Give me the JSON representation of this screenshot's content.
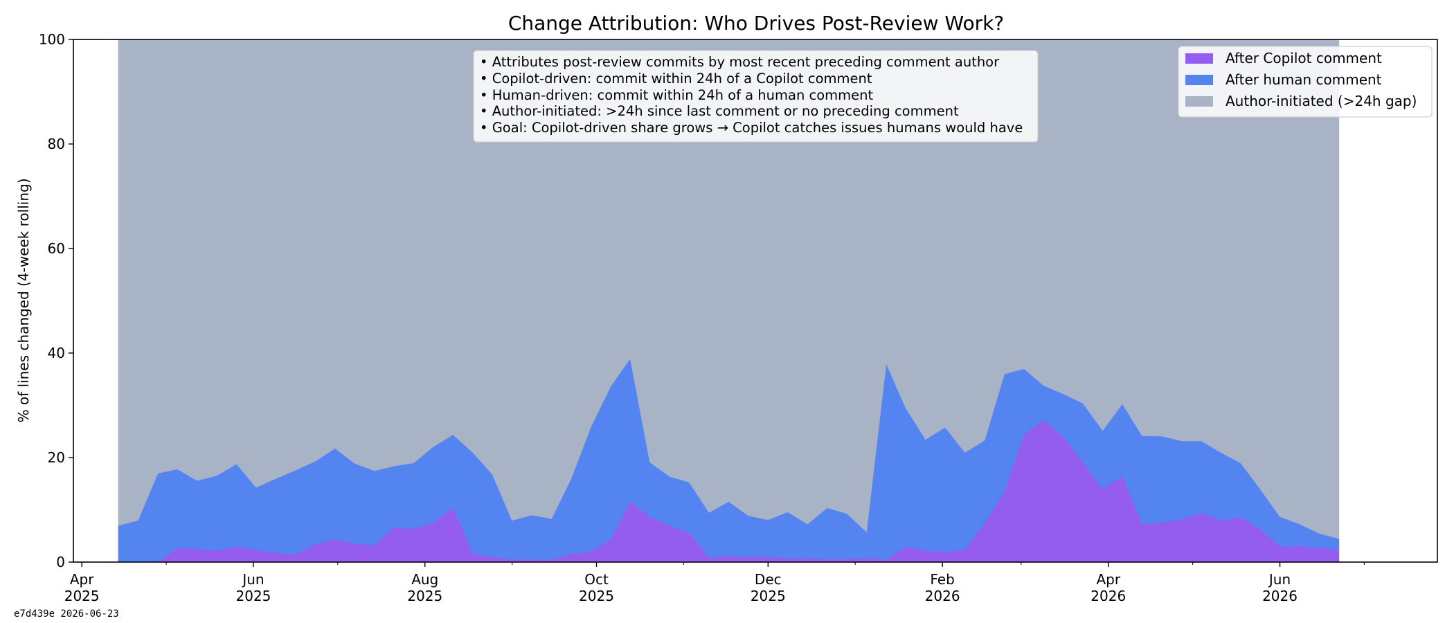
{
  "chart_data": {
    "type": "area",
    "title": "Change Attribution: Who Drives Post-Review Work?",
    "xlabel": "",
    "ylabel": "% of lines changed (4-week rolling)",
    "ylim": [
      0,
      100
    ],
    "xlim": [
      "2025-03-29",
      "2026-07-27"
    ],
    "yticks": [
      0,
      20,
      40,
      60,
      80,
      100
    ],
    "xticks": [
      {
        "date": "2025-04-01",
        "line1": "Apr",
        "line2": "2025"
      },
      {
        "date": "2025-06-01",
        "line1": "Jun",
        "line2": "2025"
      },
      {
        "date": "2025-08-01",
        "line1": "Aug",
        "line2": "2025"
      },
      {
        "date": "2025-10-01",
        "line1": "Oct",
        "line2": "2025"
      },
      {
        "date": "2025-12-01",
        "line1": "Dec",
        "line2": "2025"
      },
      {
        "date": "2026-02-01",
        "line1": "Feb",
        "line2": "2026"
      },
      {
        "date": "2026-04-01",
        "line1": "Apr",
        "line2": "2026"
      },
      {
        "date": "2026-06-01",
        "line1": "Jun",
        "line2": "2026"
      }
    ],
    "minor_ticks": [
      "2025-05-01",
      "2025-07-01",
      "2025-09-01",
      "2025-11-01",
      "2026-01-01",
      "2026-03-01",
      "2026-05-01",
      "2026-07-01"
    ],
    "grid": false,
    "legend_position": "top-right",
    "stacked": true,
    "x": [
      "2025-04-14",
      "2025-04-21",
      "2025-04-28",
      "2025-05-05",
      "2025-05-12",
      "2025-05-19",
      "2025-05-26",
      "2025-06-02",
      "2025-06-09",
      "2025-06-16",
      "2025-06-23",
      "2025-06-30",
      "2025-07-07",
      "2025-07-14",
      "2025-07-21",
      "2025-07-28",
      "2025-08-04",
      "2025-08-11",
      "2025-08-18",
      "2025-08-25",
      "2025-09-01",
      "2025-09-08",
      "2025-09-15",
      "2025-09-22",
      "2025-09-29",
      "2025-10-06",
      "2025-10-13",
      "2025-10-20",
      "2025-10-27",
      "2025-11-03",
      "2025-11-10",
      "2025-11-17",
      "2025-11-24",
      "2025-12-01",
      "2025-12-08",
      "2025-12-15",
      "2025-12-22",
      "2025-12-29",
      "2026-01-05",
      "2026-01-12",
      "2026-01-19",
      "2026-01-26",
      "2026-02-02",
      "2026-02-09",
      "2026-02-16",
      "2026-02-23",
      "2026-03-02",
      "2026-03-09",
      "2026-03-16",
      "2026-03-23",
      "2026-03-30",
      "2026-04-06",
      "2026-04-13",
      "2026-04-20",
      "2026-04-27",
      "2026-05-04",
      "2026-05-11",
      "2026-05-18",
      "2026-05-25",
      "2026-06-01",
      "2026-06-08",
      "2026-06-15",
      "2026-06-22"
    ],
    "series": [
      {
        "name": "After Copilot comment",
        "color": "#955cf0",
        "values": [
          0,
          0,
          0,
          2.7,
          2.6,
          2.2,
          3.0,
          2.3,
          1.8,
          1.5,
          3.5,
          4.4,
          3.6,
          3.2,
          6.7,
          6.4,
          7.5,
          10.5,
          1.7,
          1.0,
          0.6,
          0.5,
          0.5,
          1.6,
          2.0,
          4.4,
          11.7,
          8.6,
          7.0,
          5.6,
          0.9,
          1.2,
          1.0,
          1.0,
          0.8,
          0.7,
          0.6,
          0.6,
          0.8,
          0.5,
          3.0,
          2.2,
          2.0,
          2.4,
          7.5,
          13.5,
          24.5,
          27.2,
          24.0,
          19.0,
          14.0,
          16.5,
          7.2,
          7.6,
          8.2,
          9.4,
          8.0,
          8.6,
          6.3,
          3.0,
          3.1,
          2.7,
          2.5
        ]
      },
      {
        "name": "After human comment",
        "color": "#5484f0",
        "values": [
          7.0,
          8.0,
          17.0,
          15.1,
          13.0,
          14.4,
          15.8,
          12.0,
          14.2,
          16.1,
          15.8,
          17.4,
          15.3,
          14.3,
          11.7,
          12.6,
          14.6,
          13.9,
          19.3,
          15.8,
          7.4,
          8.5,
          7.8,
          14.4,
          23.9,
          29.2,
          27.3,
          10.5,
          9.4,
          9.7,
          8.6,
          10.4,
          7.9,
          7.1,
          8.8,
          6.6,
          9.8,
          8.7,
          5.0,
          37.5,
          26.5,
          21.3,
          23.8,
          18.6,
          15.8,
          22.5,
          12.5,
          6.6,
          8.2,
          11.4,
          11.2,
          13.8,
          17.0,
          16.5,
          15.0,
          13.8,
          13.0,
          10.4,
          7.7,
          5.7,
          4.2,
          2.8,
          2.0
        ]
      },
      {
        "name": "Author-initiated (>24h gap)",
        "color": "#a8b3c6",
        "values": [
          93.0,
          92.0,
          83.0,
          82.2,
          84.4,
          83.4,
          81.2,
          85.7,
          84.0,
          82.4,
          80.7,
          78.2,
          81.1,
          82.5,
          81.6,
          81.0,
          77.9,
          75.6,
          79.0,
          83.2,
          92.0,
          91.0,
          91.7,
          84.0,
          74.1,
          66.4,
          61.0,
          80.9,
          83.6,
          84.7,
          90.5,
          88.4,
          91.1,
          91.9,
          90.4,
          92.7,
          89.6,
          90.7,
          94.2,
          62.0,
          70.5,
          76.5,
          74.2,
          79.0,
          76.7,
          64.0,
          63.0,
          66.2,
          67.8,
          69.6,
          74.8,
          69.7,
          75.8,
          75.9,
          76.8,
          76.8,
          79.0,
          81.0,
          86.0,
          91.3,
          92.7,
          94.5,
          95.5
        ]
      }
    ],
    "annotations": [
      "• Attributes post-review commits by most recent preceding comment author",
      "• Copilot-driven: commit within 24h of a Copilot comment",
      "• Human-driven: commit within 24h of a human comment",
      "• Author-initiated: >24h since last comment or no preceding comment",
      "• Goal: Copilot-driven share grows → Copilot catches issues humans would have"
    ],
    "footer": "e7d439e  2026-06-23"
  }
}
